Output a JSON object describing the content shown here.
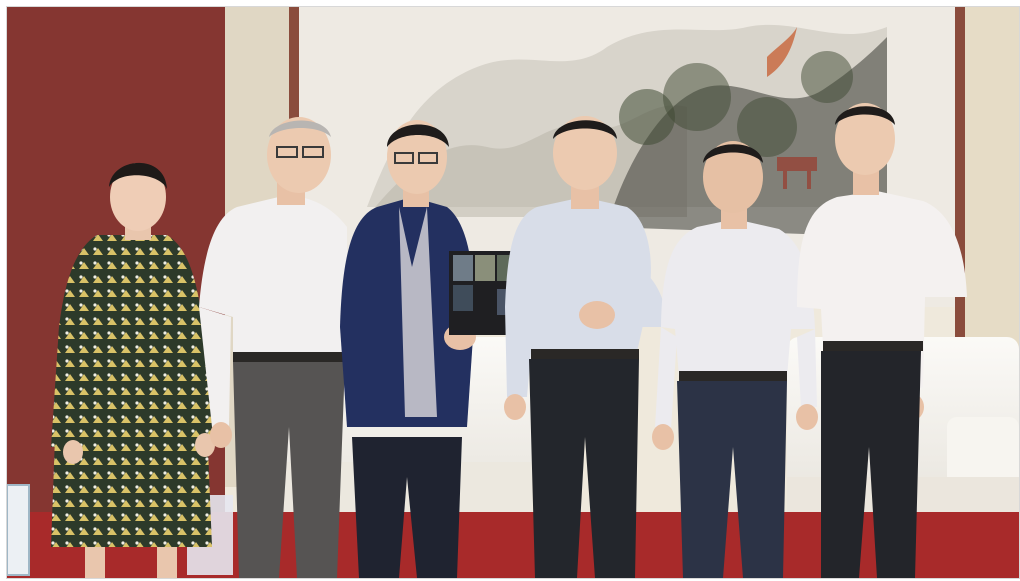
{
  "scene": {
    "kind": "photograph",
    "people_count": 6,
    "colors": {
      "wall_red": "#8e3a34",
      "wall_cream": "#efe9dc",
      "carpet": "#a82a2a",
      "sofa": "#f3f0ea",
      "painting_bg": "#eeeae3",
      "ink_dark": "#3b3a35"
    }
  },
  "people": [
    {
      "name": "person-woman-patterned-dress",
      "shirt": "#2d3a2a",
      "accent": "#d9c267",
      "pants": "#2d3a2a"
    },
    {
      "name": "person-man-white-shirt-glasses",
      "shirt": "#f2f0f0",
      "accent": "#f2f0f0",
      "pants": "#565453"
    },
    {
      "name": "person-man-dark-blazer",
      "shirt": "#233060",
      "accent": "#b8b8c4",
      "pants": "#1f2330"
    },
    {
      "name": "person-man-blue-shirt-center",
      "shirt": "#d8dde8",
      "accent": "#d8dde8",
      "pants": "#23262c"
    },
    {
      "name": "person-man-white-shirt",
      "shirt": "#ecebef",
      "accent": "#ecebef",
      "pants": "#2c3346"
    },
    {
      "name": "person-man-right-white-shirt",
      "shirt": "#f4f1f0",
      "accent": "#f4f1f0",
      "pants": "#23252a"
    }
  ]
}
